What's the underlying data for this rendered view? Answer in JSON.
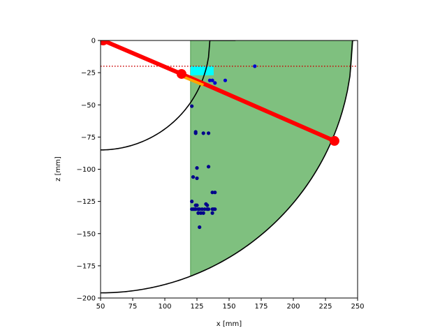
{
  "chart_data": {
    "type": "scatter",
    "title": "",
    "xlabel": "x [mm]",
    "ylabel": "z [mm]",
    "xlim": [
      50,
      250
    ],
    "ylim": [
      -200,
      0
    ],
    "xticks": [
      50,
      75,
      100,
      125,
      150,
      175,
      200,
      225,
      250
    ],
    "yticks": [
      0,
      -25,
      -50,
      -75,
      -100,
      -125,
      -150,
      -175,
      -200
    ],
    "xtick_labels": [
      "50",
      "75",
      "100",
      "125",
      "150",
      "175",
      "200",
      "225",
      "250"
    ],
    "ytick_labels": [
      "0",
      "−25",
      "−50",
      "−75",
      "−100",
      "−125",
      "−150",
      "−175",
      "−200"
    ],
    "grid": false,
    "legend": "none",
    "colors": {
      "region_fill": "#7fc07f",
      "region_edge": "#4f9a4f",
      "highlight": "#00ffff",
      "beam": "#ff0000",
      "beam_highlight": "#ffa500",
      "points": "#0000cd",
      "points_dark": "#00008b",
      "curves": "#000000",
      "reference_line": "#cc0000"
    },
    "shaded_region": {
      "x_min": 120,
      "inner_radius": 85,
      "outer_radius": 196,
      "outer_x_extent": 248,
      "inner_curve_endpoint": [
        155,
        0
      ]
    },
    "highlight_band": {
      "x": [
        120,
        138
      ],
      "z": [
        -20,
        -27
      ]
    },
    "reference_line": {
      "z": -20,
      "style": "dotted"
    },
    "arcs": [
      {
        "radius": 85,
        "x_from": 50,
        "x_to": 155
      },
      {
        "radius": 196,
        "x_from": 50,
        "x_to": 248
      }
    ],
    "beam": {
      "points": [
        [
          52,
          0
        ],
        [
          113,
          -26
        ],
        [
          232,
          -78
        ]
      ],
      "highlight_segment": [
        [
          113,
          -26
        ],
        [
          130,
          -33
        ]
      ]
    },
    "series": [
      {
        "marker": "circle",
        "points": [
          [
            170,
            -20
          ],
          [
            135,
            -31
          ],
          [
            137,
            -31
          ],
          [
            139,
            -33
          ],
          [
            147,
            -31
          ],
          [
            121,
            -51
          ],
          [
            124,
            -71
          ],
          [
            124,
            -72
          ],
          [
            130,
            -72
          ],
          [
            134,
            -72
          ],
          [
            125,
            -99
          ],
          [
            134,
            -98
          ],
          [
            122,
            -106
          ],
          [
            125,
            -107
          ],
          [
            137,
            -118
          ],
          [
            139,
            -118
          ],
          [
            121,
            -125
          ],
          [
            124,
            -128
          ],
          [
            125,
            -128
          ],
          [
            132,
            -127
          ],
          [
            133,
            -128
          ],
          [
            121,
            -131
          ],
          [
            122,
            -131
          ],
          [
            123,
            -131
          ],
          [
            124,
            -131
          ],
          [
            126,
            -131
          ],
          [
            127,
            -131
          ],
          [
            129,
            -131
          ],
          [
            131,
            -131
          ],
          [
            133,
            -131
          ],
          [
            134,
            -131
          ],
          [
            137,
            -131
          ],
          [
            138,
            -131
          ],
          [
            139,
            -131
          ],
          [
            126,
            -134
          ],
          [
            128,
            -134
          ],
          [
            130,
            -134
          ],
          [
            137,
            -134
          ],
          [
            127,
            -145
          ]
        ]
      }
    ]
  }
}
